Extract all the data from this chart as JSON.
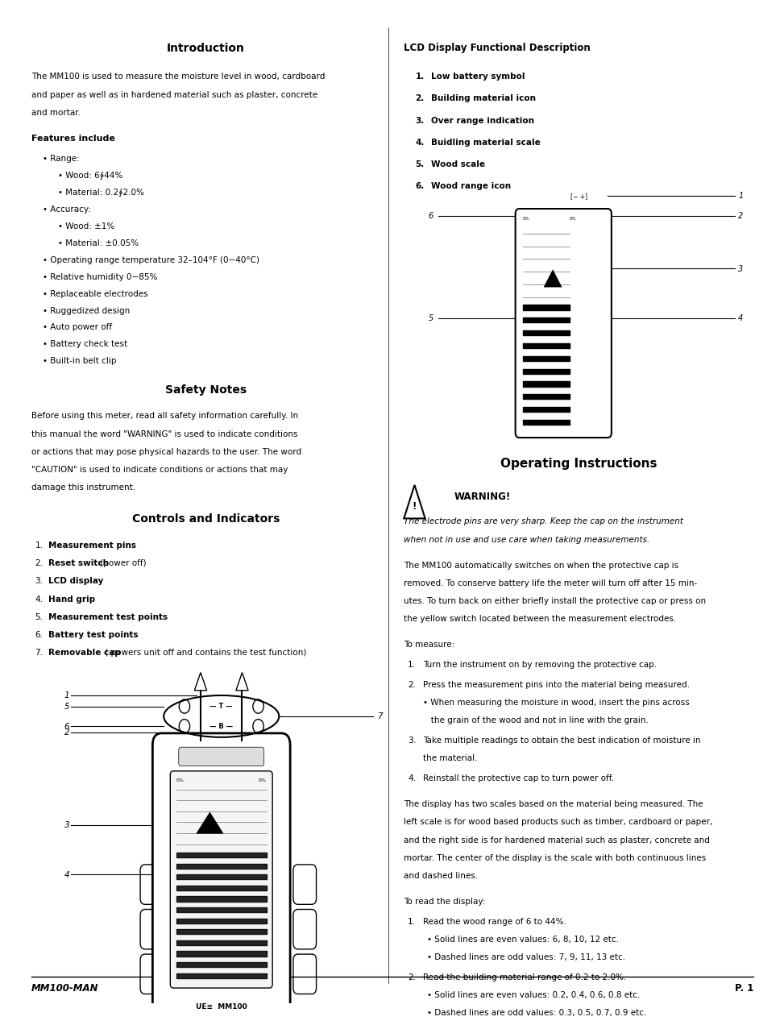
{
  "bg_color": "#ffffff",
  "page_width": 9.54,
  "page_height": 12.35,
  "col_split": 0.495,
  "intro_title": "Introduction",
  "intro_body": "The MM100 is used to measure the moisture level in wood, cardboard\nand paper as well as in hardened material such as plaster, concrete\nand mortar.",
  "features_title": "Features include",
  "features": [
    "Range:",
    "    Wood: 6∲44%",
    "    Material: 0.2∲2.0%",
    "Accuracy:",
    "    Wood: ±1%",
    "    Material: ±0.05%",
    "Operating range temperature 32–104°F (0−40°C)",
    "Relative humidity 0−85%",
    "Replaceable electrodes",
    "Ruggedized design",
    "Auto power off",
    "Battery check test",
    "Built-in belt clip"
  ],
  "safety_title": "Safety Notes",
  "safety_body": "Before using this meter, read all safety information carefully. In\nthis manual the word \"WARNING\" is used to indicate conditions\nor actions that may pose physical hazards to the user. The word\n\"CAUTION\" is used to indicate conditions or actions that may\ndamage this instrument.",
  "controls_title": "Controls and Indicators",
  "controls_list": [
    [
      "Measurement pins",
      ""
    ],
    [
      "Reset switch",
      " (power off)"
    ],
    [
      "LCD display",
      ""
    ],
    [
      "Hand grip",
      ""
    ],
    [
      "Measurement test points",
      ""
    ],
    [
      "Battery test points",
      ""
    ],
    [
      "Removable cap",
      " ( powers unit off and contains the test function)"
    ]
  ],
  "lcd_title": "LCD Display Functional Description",
  "lcd_list": [
    "Low battery symbol",
    "Building material icon",
    "Over range indication",
    "Buidling material scale",
    "Wood scale",
    "Wood range icon"
  ],
  "op_title": "Operating Instructions",
  "warning_text": "WARNING!",
  "warning_italic": "The electrode pins are very sharp. Keep the cap on the instrument\nwhen not in use and use care when taking measurements.",
  "op_body1": "The MM100 automatically switches on when the protective cap is\nremoved. To conserve battery life the meter will turn off after 15 min-\nutes. To turn back on either briefly install the protective cap or press on\nthe yellow switch located between the measurement electrodes.",
  "to_measure": "To measure:",
  "op_steps": [
    "Turn the instrument on by removing the protective cap.",
    "Press the measurement pins into the material being measured.\n• When measuring the moisture in wood, insert the pins across\n   the grain of the wood and not in line with the grain.",
    "Take multiple readings to obtain the best indication of moisture in\nthe material.",
    "Reinstall the protective cap to turn power off."
  ],
  "op_body2": "The display has two scales based on the material being measured. The\nleft scale is for wood based products such as timber, cardboard or paper,\nand the right side is for hardened material such as plaster, concrete and\nmortar. The center of the display is the scale with both continuous lines\nand dashed lines.",
  "to_read": "To read the display:",
  "read_steps": [
    "Read the wood range of 6 to 44%.\n• Solid lines are even values: 6, 8, 10, 12 etc.\n• Dashed lines are odd values: 7, 9, 11, 13 etc.",
    "Read the building material range of 0.2 to 2.0%.\n• Solid lines are even values: 0.2, 0.4, 0.6, 0.8 etc.\n• Dashed lines are odd values: 0.3, 0.5, 0.7, 0.9 etc."
  ],
  "footer_left": "MM100-MAN",
  "footer_right": "P. 1"
}
